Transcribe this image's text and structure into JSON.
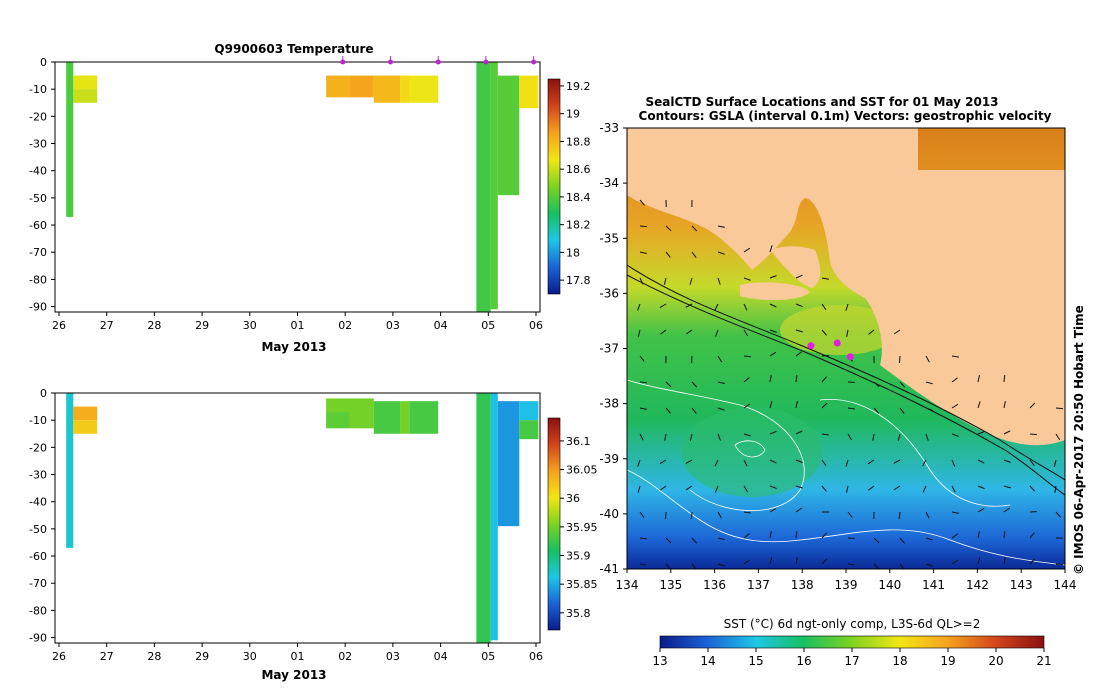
{
  "chart_data": [
    {
      "type": "heatmap",
      "title": "Q9900603  Temperature",
      "xlabel": "May 2013",
      "ylabel": "",
      "x_tick_labels": [
        "26",
        "27",
        "28",
        "29",
        "30",
        "01",
        "02",
        "03",
        "04",
        "05",
        "06"
      ],
      "xlim_day_index": [
        0,
        10
      ],
      "ylim": [
        -92,
        0
      ],
      "y_ticks": [
        0,
        -10,
        -20,
        -30,
        -40,
        -50,
        -60,
        -70,
        -80,
        -90
      ],
      "colorbar": {
        "ticks": [
          "19.2",
          "19",
          "18.8",
          "18.6",
          "18.4",
          "18.2",
          "18",
          "17.8"
        ],
        "range": [
          17.7,
          19.25
        ],
        "colors": [
          "#0b1b8a",
          "#1a64d8",
          "#1ec6e6",
          "#18c060",
          "#7ed321",
          "#f2e614",
          "#f5a21e",
          "#d2451a",
          "#8b1010"
        ]
      },
      "profile_markers_day_index": [
        5.95,
        6.95,
        7.95,
        8.95,
        9.95
      ],
      "cells": [
        {
          "x0": 0.15,
          "x1": 0.3,
          "y0": 0,
          "y1": -57,
          "value": 18.38
        },
        {
          "x0": 0.3,
          "x1": 0.8,
          "y0": -5,
          "y1": -10,
          "value": 18.65
        },
        {
          "x0": 0.3,
          "x1": 0.8,
          "y0": -10,
          "y1": -15,
          "value": 18.6
        },
        {
          "x0": 5.6,
          "x1": 6.1,
          "y0": -5,
          "y1": -13,
          "value": 18.82
        },
        {
          "x0": 6.1,
          "x1": 6.6,
          "y0": -5,
          "y1": -13,
          "value": 18.85
        },
        {
          "x0": 6.6,
          "x1": 7.15,
          "y0": -5,
          "y1": -15,
          "value": 18.8
        },
        {
          "x0": 7.15,
          "x1": 7.35,
          "y0": -5,
          "y1": -15,
          "value": 18.7
        },
        {
          "x0": 7.35,
          "x1": 7.95,
          "y0": -5,
          "y1": -15,
          "value": 18.66
        },
        {
          "x0": 8.75,
          "x1": 9.05,
          "y0": 0,
          "y1": -92,
          "value": 18.36
        },
        {
          "x0": 9.05,
          "x1": 9.2,
          "y0": 0,
          "y1": -91,
          "value": 18.4
        },
        {
          "x0": 9.2,
          "x1": 9.65,
          "y0": -5,
          "y1": -49,
          "value": 18.4
        },
        {
          "x0": 9.65,
          "x1": 10.05,
          "y0": -5,
          "y1": -17,
          "value": 18.68
        }
      ]
    },
    {
      "type": "heatmap",
      "title": "",
      "xlabel": "May 2013",
      "ylabel": "",
      "x_tick_labels": [
        "26",
        "27",
        "28",
        "29",
        "30",
        "01",
        "02",
        "03",
        "04",
        "05",
        "06"
      ],
      "xlim_day_index": [
        0,
        10
      ],
      "ylim": [
        -92,
        0
      ],
      "y_ticks": [
        0,
        -10,
        -20,
        -30,
        -40,
        -50,
        -60,
        -70,
        -80,
        -90
      ],
      "colorbar": {
        "ticks": [
          "36.1",
          "36.05",
          "36",
          "35.95",
          "35.9",
          "35.85",
          "35.8"
        ],
        "range": [
          35.77,
          36.14
        ],
        "colors": [
          "#0b1b8a",
          "#1a64d8",
          "#1ec6e6",
          "#18c060",
          "#7ed321",
          "#f2e614",
          "#f5a21e",
          "#d2451a",
          "#8b1010"
        ]
      },
      "cells": [
        {
          "x0": 0.15,
          "x1": 0.3,
          "y0": 0,
          "y1": -57,
          "value": 35.87
        },
        {
          "x0": 0.3,
          "x1": 0.8,
          "y0": -5,
          "y1": -10,
          "value": 36.04
        },
        {
          "x0": 0.3,
          "x1": 0.8,
          "y0": -10,
          "y1": -15,
          "value": 36.02
        },
        {
          "x0": 5.6,
          "x1": 6.1,
          "y0": -2,
          "y1": -7,
          "value": 35.95
        },
        {
          "x0": 5.6,
          "x1": 6.1,
          "y0": -7,
          "y1": -13,
          "value": 35.94
        },
        {
          "x0": 6.1,
          "x1": 6.6,
          "y0": -2,
          "y1": -13,
          "value": 35.95
        },
        {
          "x0": 6.6,
          "x1": 7.15,
          "y0": -3,
          "y1": -15,
          "value": 35.93
        },
        {
          "x0": 7.15,
          "x1": 7.35,
          "y0": -3,
          "y1": -15,
          "value": 35.95
        },
        {
          "x0": 7.35,
          "x1": 7.95,
          "y0": -3,
          "y1": -15,
          "value": 35.93
        },
        {
          "x0": 8.75,
          "x1": 9.05,
          "y0": 0,
          "y1": -92,
          "value": 35.92
        },
        {
          "x0": 9.05,
          "x1": 9.2,
          "y0": 0,
          "y1": -91,
          "value": 35.86
        },
        {
          "x0": 9.2,
          "x1": 9.65,
          "y0": -3,
          "y1": -49,
          "value": 35.84
        },
        {
          "x0": 9.65,
          "x1": 10.05,
          "y0": -3,
          "y1": -10,
          "value": 35.86
        },
        {
          "x0": 9.65,
          "x1": 10.05,
          "y0": -10,
          "y1": -17,
          "value": 35.93
        }
      ]
    },
    {
      "type": "heatmap",
      "title": "SealCTD Surface Locations and SST for 01 May 2013",
      "subtitle": "Contours: GSLA (interval 0.1m) Vectors: geostrophic velocity",
      "xlabel": "",
      "ylabel": "",
      "x_tick_labels": [
        "134",
        "135",
        "136",
        "137",
        "138",
        "139",
        "140",
        "141",
        "142",
        "143",
        "144"
      ],
      "y_tick_labels": [
        "-33",
        "-34",
        "-35",
        "-36",
        "-37",
        "-38",
        "-39",
        "-40",
        "-41"
      ],
      "xlim": [
        134,
        144
      ],
      "ylim": [
        -41,
        -33
      ],
      "colorbar_label": "SST (°C) 6d ngt-only comp, L3S-6d QL>=2",
      "colorbar": {
        "ticks": [
          "13",
          "14",
          "15",
          "16",
          "17",
          "18",
          "19",
          "20",
          "21"
        ],
        "range": [
          13,
          21
        ],
        "colors": [
          "#0b1b8a",
          "#1a64d8",
          "#1ec6e6",
          "#18c060",
          "#7ed321",
          "#f2e614",
          "#f5a21e",
          "#d2451a",
          "#8b1010"
        ]
      },
      "land_color": "#f9c99a",
      "seal_locations": [
        {
          "lon": 138.8,
          "lat": -36.9
        },
        {
          "lon": 138.2,
          "lat": -36.95
        },
        {
          "lon": 139.1,
          "lat": -37.15
        }
      ],
      "credit": "© IMOS 06-Apr-2017 20:50 Hobart Time"
    }
  ]
}
